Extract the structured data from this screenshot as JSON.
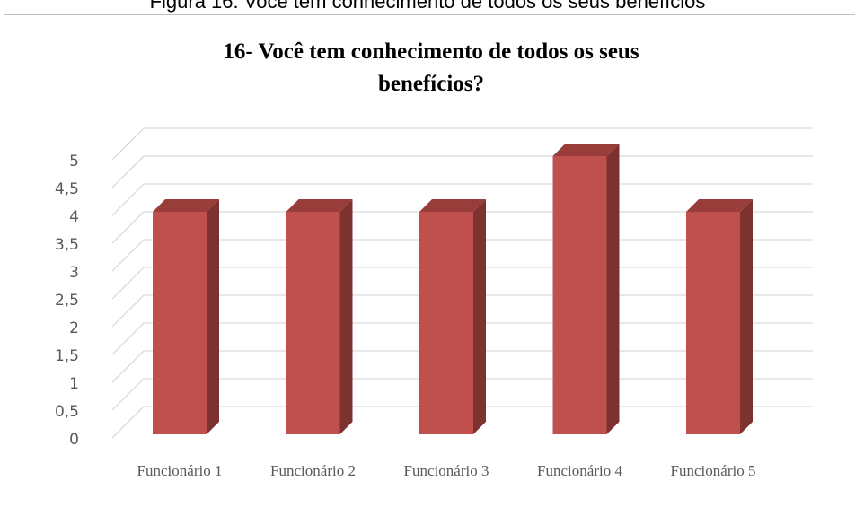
{
  "caption": "Figura 16: Você tem conhecimento de todos os seus benefícios",
  "chart_data": {
    "type": "bar3d",
    "title": "16- Você tem conhecimento de todos os seus benefícios?",
    "categories": [
      "Funcionário 1",
      "Funcionário 2",
      "Funcionário 3",
      "Funcionário 4",
      "Funcionário 5"
    ],
    "values": [
      4,
      4,
      4,
      5,
      4
    ],
    "color": "#c0504d",
    "side_color": "#7d3230",
    "top_color": "#983d3a",
    "ylim": [
      0,
      5
    ],
    "yticks": [
      0,
      {
        "value": 0.5,
        "label": "0,5"
      },
      1,
      {
        "value": 1.5,
        "label": "1,5"
      },
      2,
      {
        "value": 2.5,
        "label": "2,5"
      },
      3,
      {
        "value": 3.5,
        "label": "3,5"
      },
      4,
      {
        "value": 4.5,
        "label": "4,5"
      },
      5
    ],
    "grid": true
  }
}
